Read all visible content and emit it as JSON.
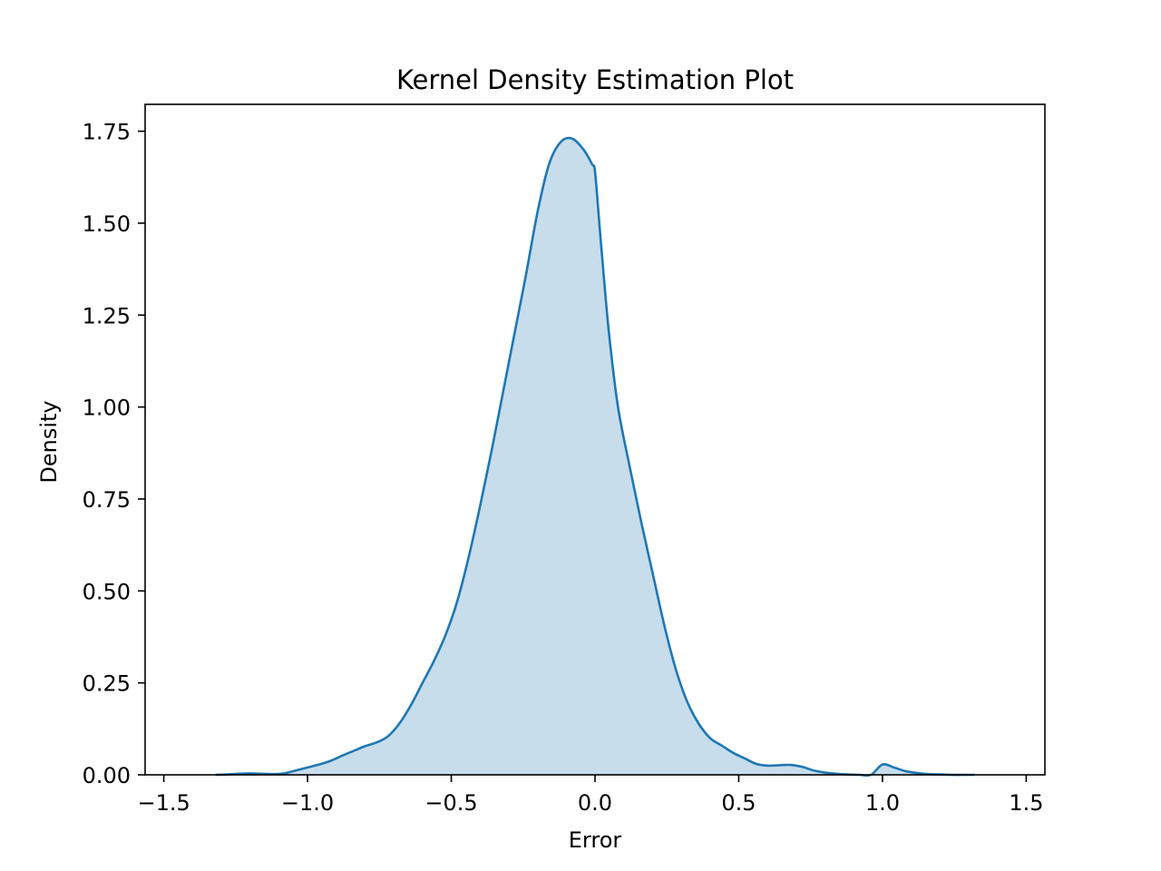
{
  "chart_data": {
    "type": "area",
    "title": "Kernel Density Estimation Plot",
    "xlabel": "Error",
    "ylabel": "Density",
    "xlim": [
      -1.565,
      1.565
    ],
    "ylim": [
      0,
      1.823
    ],
    "x_ticks": [
      -1.5,
      -1.0,
      -0.5,
      0.0,
      0.5,
      1.0,
      1.5
    ],
    "x_tick_labels": [
      "−1.5",
      "−1.0",
      "−0.5",
      "0.0",
      "0.5",
      "1.0",
      "1.5"
    ],
    "y_ticks": [
      0.0,
      0.25,
      0.5,
      0.75,
      1.0,
      1.25,
      1.5,
      1.75
    ],
    "y_tick_labels": [
      "0.00",
      "0.25",
      "0.50",
      "0.75",
      "1.00",
      "1.25",
      "1.50",
      "1.75"
    ],
    "grid": false,
    "colors": {
      "line": "#1f77b4",
      "fill": "#1f77b4",
      "fill_opacity": 0.25
    },
    "series": [
      {
        "x": [
          -1.32,
          -1.28,
          -1.24,
          -1.2,
          -1.16,
          -1.12,
          -1.08,
          -1.04,
          -1.0,
          -0.96,
          -0.92,
          -0.88,
          -0.84,
          -0.8,
          -0.76,
          -0.72,
          -0.68,
          -0.64,
          -0.6,
          -0.56,
          -0.52,
          -0.48,
          -0.44,
          -0.4,
          -0.36,
          -0.32,
          -0.28,
          -0.24,
          -0.2,
          -0.16,
          -0.12,
          -0.08,
          -0.04,
          -0.01,
          0.0,
          0.015,
          0.03,
          0.05,
          0.08,
          0.12,
          0.16,
          0.2,
          0.24,
          0.28,
          0.32,
          0.36,
          0.4,
          0.44,
          0.48,
          0.52,
          0.56,
          0.6,
          0.64,
          0.68,
          0.72,
          0.76,
          0.8,
          0.84,
          0.88,
          0.92,
          0.96,
          1.0,
          1.04,
          1.08,
          1.12,
          1.16,
          1.2,
          1.24,
          1.28,
          1.32
        ],
        "y": [
          0.0,
          0.001,
          0.003,
          0.004,
          0.003,
          0.002,
          0.004,
          0.012,
          0.02,
          0.028,
          0.038,
          0.052,
          0.065,
          0.078,
          0.088,
          0.105,
          0.14,
          0.19,
          0.25,
          0.31,
          0.38,
          0.47,
          0.59,
          0.73,
          0.88,
          1.04,
          1.2,
          1.36,
          1.53,
          1.66,
          1.72,
          1.73,
          1.7,
          1.66,
          1.64,
          1.5,
          1.36,
          1.19,
          1.0,
          0.84,
          0.69,
          0.55,
          0.41,
          0.29,
          0.2,
          0.14,
          0.1,
          0.08,
          0.06,
          0.045,
          0.03,
          0.025,
          0.026,
          0.027,
          0.022,
          0.012,
          0.006,
          0.003,
          0.001,
          0.0,
          0.0,
          0.028,
          0.02,
          0.01,
          0.005,
          0.002,
          0.001,
          0.0,
          0.0,
          0.0
        ]
      }
    ]
  }
}
